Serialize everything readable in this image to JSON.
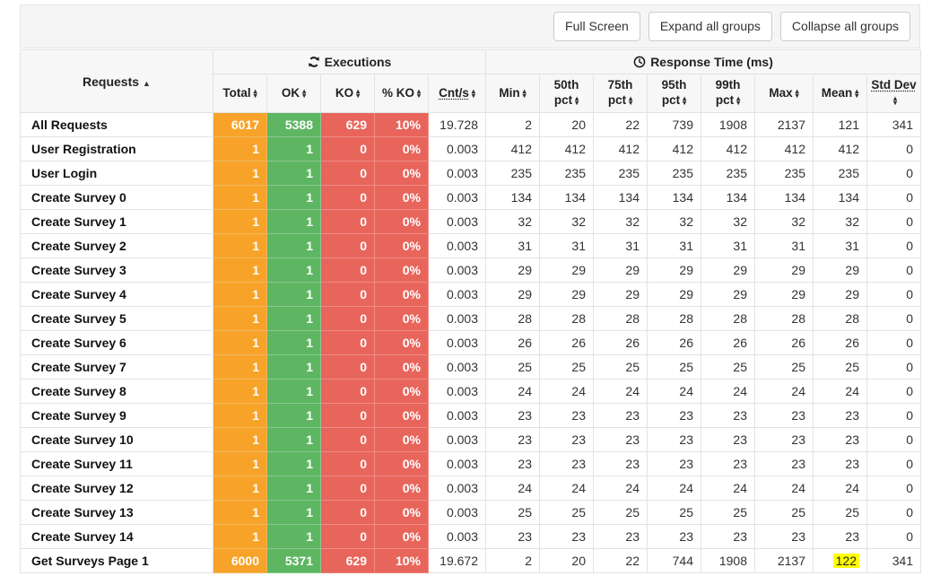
{
  "toolbar": {
    "buttons": [
      {
        "label": "Full Screen"
      },
      {
        "label": "Expand all groups"
      },
      {
        "label": "Collapse all groups"
      }
    ]
  },
  "table": {
    "group_headers": {
      "requests": "Requests",
      "executions": "Executions",
      "response_time": "Response Time (ms)"
    },
    "sort": {
      "column": "Requests",
      "direction": "ascending"
    },
    "columns": [
      {
        "label": "Total"
      },
      {
        "label": "OK"
      },
      {
        "label": "KO"
      },
      {
        "label": "% KO"
      },
      {
        "label": "Cnt/s"
      },
      {
        "label": "Min"
      },
      {
        "label": "50th pct"
      },
      {
        "label": "75th pct"
      },
      {
        "label": "95th pct"
      },
      {
        "label": "99th pct"
      },
      {
        "label": "Max"
      },
      {
        "label": "Mean"
      },
      {
        "label": "Std Dev"
      }
    ],
    "rows": [
      {
        "name": "All Requests",
        "total": "6017",
        "ok": "5388",
        "ko": "629",
        "ko_pct": "10%",
        "cnt": "19.728",
        "min": "2",
        "p50": "20",
        "p75": "22",
        "p95": "739",
        "p99": "1908",
        "max": "2137",
        "mean": "121",
        "std": "341"
      },
      {
        "name": "User Registration",
        "total": "1",
        "ok": "1",
        "ko": "0",
        "ko_pct": "0%",
        "cnt": "0.003",
        "min": "412",
        "p50": "412",
        "p75": "412",
        "p95": "412",
        "p99": "412",
        "max": "412",
        "mean": "412",
        "std": "0"
      },
      {
        "name": "User Login",
        "total": "1",
        "ok": "1",
        "ko": "0",
        "ko_pct": "0%",
        "cnt": "0.003",
        "min": "235",
        "p50": "235",
        "p75": "235",
        "p95": "235",
        "p99": "235",
        "max": "235",
        "mean": "235",
        "std": "0"
      },
      {
        "name": "Create Survey 0",
        "total": "1",
        "ok": "1",
        "ko": "0",
        "ko_pct": "0%",
        "cnt": "0.003",
        "min": "134",
        "p50": "134",
        "p75": "134",
        "p95": "134",
        "p99": "134",
        "max": "134",
        "mean": "134",
        "std": "0"
      },
      {
        "name": "Create Survey 1",
        "total": "1",
        "ok": "1",
        "ko": "0",
        "ko_pct": "0%",
        "cnt": "0.003",
        "min": "32",
        "p50": "32",
        "p75": "32",
        "p95": "32",
        "p99": "32",
        "max": "32",
        "mean": "32",
        "std": "0"
      },
      {
        "name": "Create Survey 2",
        "total": "1",
        "ok": "1",
        "ko": "0",
        "ko_pct": "0%",
        "cnt": "0.003",
        "min": "31",
        "p50": "31",
        "p75": "31",
        "p95": "31",
        "p99": "31",
        "max": "31",
        "mean": "31",
        "std": "0"
      },
      {
        "name": "Create Survey 3",
        "total": "1",
        "ok": "1",
        "ko": "0",
        "ko_pct": "0%",
        "cnt": "0.003",
        "min": "29",
        "p50": "29",
        "p75": "29",
        "p95": "29",
        "p99": "29",
        "max": "29",
        "mean": "29",
        "std": "0"
      },
      {
        "name": "Create Survey 4",
        "total": "1",
        "ok": "1",
        "ko": "0",
        "ko_pct": "0%",
        "cnt": "0.003",
        "min": "29",
        "p50": "29",
        "p75": "29",
        "p95": "29",
        "p99": "29",
        "max": "29",
        "mean": "29",
        "std": "0"
      },
      {
        "name": "Create Survey 5",
        "total": "1",
        "ok": "1",
        "ko": "0",
        "ko_pct": "0%",
        "cnt": "0.003",
        "min": "28",
        "p50": "28",
        "p75": "28",
        "p95": "28",
        "p99": "28",
        "max": "28",
        "mean": "28",
        "std": "0"
      },
      {
        "name": "Create Survey 6",
        "total": "1",
        "ok": "1",
        "ko": "0",
        "ko_pct": "0%",
        "cnt": "0.003",
        "min": "26",
        "p50": "26",
        "p75": "26",
        "p95": "26",
        "p99": "26",
        "max": "26",
        "mean": "26",
        "std": "0"
      },
      {
        "name": "Create Survey 7",
        "total": "1",
        "ok": "1",
        "ko": "0",
        "ko_pct": "0%",
        "cnt": "0.003",
        "min": "25",
        "p50": "25",
        "p75": "25",
        "p95": "25",
        "p99": "25",
        "max": "25",
        "mean": "25",
        "std": "0"
      },
      {
        "name": "Create Survey 8",
        "total": "1",
        "ok": "1",
        "ko": "0",
        "ko_pct": "0%",
        "cnt": "0.003",
        "min": "24",
        "p50": "24",
        "p75": "24",
        "p95": "24",
        "p99": "24",
        "max": "24",
        "mean": "24",
        "std": "0"
      },
      {
        "name": "Create Survey 9",
        "total": "1",
        "ok": "1",
        "ko": "0",
        "ko_pct": "0%",
        "cnt": "0.003",
        "min": "23",
        "p50": "23",
        "p75": "23",
        "p95": "23",
        "p99": "23",
        "max": "23",
        "mean": "23",
        "std": "0"
      },
      {
        "name": "Create Survey 10",
        "total": "1",
        "ok": "1",
        "ko": "0",
        "ko_pct": "0%",
        "cnt": "0.003",
        "min": "23",
        "p50": "23",
        "p75": "23",
        "p95": "23",
        "p99": "23",
        "max": "23",
        "mean": "23",
        "std": "0"
      },
      {
        "name": "Create Survey 11",
        "total": "1",
        "ok": "1",
        "ko": "0",
        "ko_pct": "0%",
        "cnt": "0.003",
        "min": "23",
        "p50": "23",
        "p75": "23",
        "p95": "23",
        "p99": "23",
        "max": "23",
        "mean": "23",
        "std": "0"
      },
      {
        "name": "Create Survey 12",
        "total": "1",
        "ok": "1",
        "ko": "0",
        "ko_pct": "0%",
        "cnt": "0.003",
        "min": "24",
        "p50": "24",
        "p75": "24",
        "p95": "24",
        "p99": "24",
        "max": "24",
        "mean": "24",
        "std": "0"
      },
      {
        "name": "Create Survey 13",
        "total": "1",
        "ok": "1",
        "ko": "0",
        "ko_pct": "0%",
        "cnt": "0.003",
        "min": "25",
        "p50": "25",
        "p75": "25",
        "p95": "25",
        "p99": "25",
        "max": "25",
        "mean": "25",
        "std": "0"
      },
      {
        "name": "Create Survey 14",
        "total": "1",
        "ok": "1",
        "ko": "0",
        "ko_pct": "0%",
        "cnt": "0.003",
        "min": "23",
        "p50": "23",
        "p75": "23",
        "p95": "23",
        "p99": "23",
        "max": "23",
        "mean": "23",
        "std": "0"
      },
      {
        "name": "Get Surveys Page 1",
        "total": "6000",
        "ok": "5371",
        "ko": "629",
        "ko_pct": "10%",
        "cnt": "19.672",
        "min": "2",
        "p50": "20",
        "p75": "22",
        "p95": "744",
        "p99": "1908",
        "max": "2137",
        "mean": "122",
        "std": "341",
        "mean_highlight": true
      }
    ]
  },
  "colors": {
    "total": "#f7a32a",
    "ok": "#5eb663",
    "ko": "#e8655c",
    "highlight": "#ffff00"
  }
}
